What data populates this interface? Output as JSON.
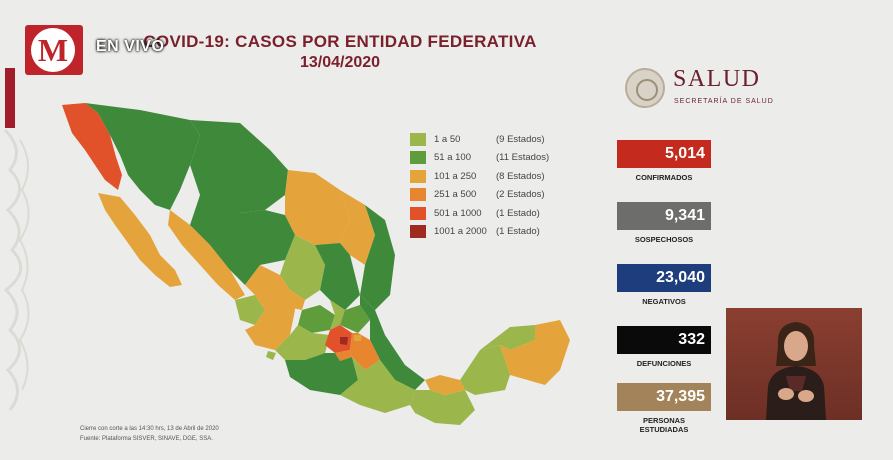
{
  "header": {
    "title": "COVID-19: CASOS POR ENTIDAD FEDERATIVA",
    "date": "13/04/2020",
    "channel_logo_letter": "M",
    "live_label": "EN VIVO"
  },
  "brand": {
    "name": "SALUD",
    "subtitle": "SECRETARÍA DE SALUD"
  },
  "legend": [
    {
      "range": "1 a 50",
      "count": "(9 Estados)",
      "color": "#9bb64b"
    },
    {
      "range": "51 a 100",
      "count": "(11 Estados)",
      "color": "#5f9c3c"
    },
    {
      "range": "101 a 250",
      "count": "(8 Estados)",
      "color": "#e5a33b"
    },
    {
      "range": "251 a 500",
      "count": "(2 Estados)",
      "color": "#e7862e"
    },
    {
      "range": "501 a 1000",
      "count": "(1 Estado)",
      "color": "#e1522a"
    },
    {
      "range": "1001 a 2000",
      "count": "(1 Estado)",
      "color": "#9e2a22"
    }
  ],
  "stats": [
    {
      "value": "5,014",
      "label": "CONFIRMADOS",
      "color": "#c42a1e"
    },
    {
      "value": "9,341",
      "label": "SOSPECHOSOS",
      "color": "#6d6d6b"
    },
    {
      "value": "23,040",
      "label": "NEGATIVOS",
      "color": "#1d3d7c"
    },
    {
      "value": "332",
      "label": "DEFUNCIONES",
      "color": "#0a0a0a"
    },
    {
      "value": "37,395",
      "label": "PERSONAS ESTUDIADAS",
      "color": "#a3845a"
    }
  ],
  "footnote": {
    "line1": "Cierre con corte a las 14:30 hrs, 13 de Abril de 2020",
    "line2": "Fuente: Plataforma SISVER, SINAVE, DGE, SSA."
  },
  "colors": {
    "dark_green": "#3f8a3a",
    "mid_green": "#5f9c3c",
    "light_green": "#9bb64b",
    "orange_light": "#e5a33b",
    "orange": "#e7862e",
    "red_orange": "#e1522a",
    "dark_red": "#9e2a22"
  }
}
